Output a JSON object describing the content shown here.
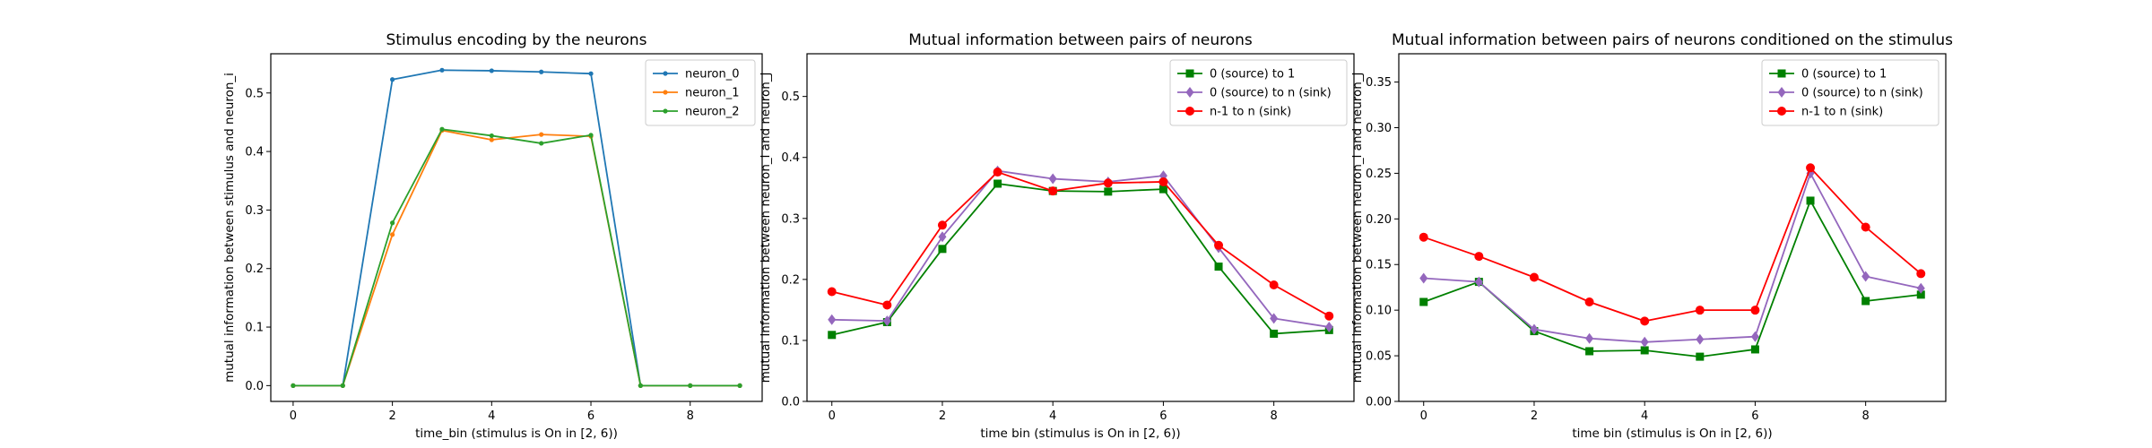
{
  "chart_data": [
    {
      "type": "line",
      "title": "Stimulus encoding by the neurons",
      "xlabel": "time_bin (stimulus is On in [2, 6))",
      "ylabel": "mutual information between stimulus and neuron_i",
      "xlim": [
        -0.45,
        9.45
      ],
      "ylim": [
        -0.027,
        0.567
      ],
      "xticks": [
        0,
        2,
        4,
        6,
        8
      ],
      "yticks": [
        0.0,
        0.1,
        0.2,
        0.3,
        0.4,
        0.5
      ],
      "ytick_labels": [
        "0.0",
        "0.1",
        "0.2",
        "0.3",
        "0.4",
        "0.5"
      ],
      "legend_position": "top-right",
      "x": [
        0,
        1,
        2,
        3,
        4,
        5,
        6,
        7,
        8,
        9
      ],
      "series": [
        {
          "name": "neuron_0",
          "color": "#1f77b4",
          "marker": "point",
          "values": [
            0.0,
            0.0,
            0.523,
            0.539,
            0.538,
            0.536,
            0.533,
            0.0,
            0.0,
            0.0
          ]
        },
        {
          "name": "neuron_1",
          "color": "#ff7f0e",
          "marker": "point",
          "values": [
            0.0,
            0.0,
            0.258,
            0.436,
            0.42,
            0.429,
            0.426,
            0.0,
            0.0,
            0.0
          ]
        },
        {
          "name": "neuron_2",
          "color": "#2ca02c",
          "marker": "point",
          "values": [
            0.0,
            0.0,
            0.278,
            0.438,
            0.427,
            0.414,
            0.428,
            0.0,
            0.0,
            0.0
          ]
        }
      ]
    },
    {
      "type": "line",
      "title": "Mutual information between pairs of neurons",
      "xlabel": "time bin (stimulus is On in [2, 6))",
      "ylabel": "mutual information between neuron_i and neuron_j",
      "xlim": [
        -0.45,
        9.45
      ],
      "ylim": [
        0.0,
        0.57
      ],
      "xticks": [
        0,
        2,
        4,
        6,
        8
      ],
      "yticks": [
        0.0,
        0.1,
        0.2,
        0.3,
        0.4,
        0.5
      ],
      "ytick_labels": [
        "0.0",
        "0.1",
        "0.2",
        "0.3",
        "0.4",
        "0.5"
      ],
      "legend_position": "top-right",
      "x": [
        0,
        1,
        2,
        3,
        4,
        5,
        6,
        7,
        8,
        9
      ],
      "series": [
        {
          "name": "0 (source) to 1",
          "color": "#008000",
          "marker": "square",
          "values": [
            0.109,
            0.13,
            0.25,
            0.357,
            0.345,
            0.344,
            0.348,
            0.221,
            0.111,
            0.117
          ]
        },
        {
          "name": "0 (source) to n (sink)",
          "color": "#9467bd",
          "marker": "diamond",
          "values": [
            0.134,
            0.132,
            0.27,
            0.378,
            0.365,
            0.36,
            0.37,
            0.252,
            0.136,
            0.122
          ]
        },
        {
          "name": "n-1 to n (sink)",
          "color": "#ff0000",
          "marker": "circle",
          "values": [
            0.18,
            0.158,
            0.289,
            0.376,
            0.345,
            0.358,
            0.36,
            0.256,
            0.191,
            0.14
          ]
        }
      ]
    },
    {
      "type": "line",
      "title": "Mutual information between pairs of neurons conditioned on the stimulus",
      "xlabel": "time bin (stimulus is On in [2, 6))",
      "ylabel": "mutual information between neuron_i and neuron_j",
      "xlim": [
        -0.45,
        9.45
      ],
      "ylim": [
        0.0,
        0.381
      ],
      "xticks": [
        0,
        2,
        4,
        6,
        8
      ],
      "yticks": [
        0.0,
        0.05,
        0.1,
        0.15,
        0.2,
        0.25,
        0.3,
        0.35
      ],
      "ytick_labels": [
        "0.00",
        "0.05",
        "0.10",
        "0.15",
        "0.20",
        "0.25",
        "0.30",
        "0.35"
      ],
      "legend_position": "top-right",
      "x": [
        0,
        1,
        2,
        3,
        4,
        5,
        6,
        7,
        8,
        9
      ],
      "series": [
        {
          "name": "0 (source) to 1",
          "color": "#008000",
          "marker": "square",
          "values": [
            0.109,
            0.131,
            0.077,
            0.055,
            0.056,
            0.049,
            0.057,
            0.22,
            0.11,
            0.117
          ]
        },
        {
          "name": "0 (source) to n (sink)",
          "color": "#9467bd",
          "marker": "diamond",
          "values": [
            0.135,
            0.131,
            0.079,
            0.069,
            0.065,
            0.068,
            0.071,
            0.25,
            0.137,
            0.124
          ]
        },
        {
          "name": "n-1 to n (sink)",
          "color": "#ff0000",
          "marker": "circle",
          "values": [
            0.18,
            0.159,
            0.136,
            0.109,
            0.088,
            0.1,
            0.1,
            0.256,
            0.191,
            0.14
          ]
        }
      ]
    }
  ]
}
